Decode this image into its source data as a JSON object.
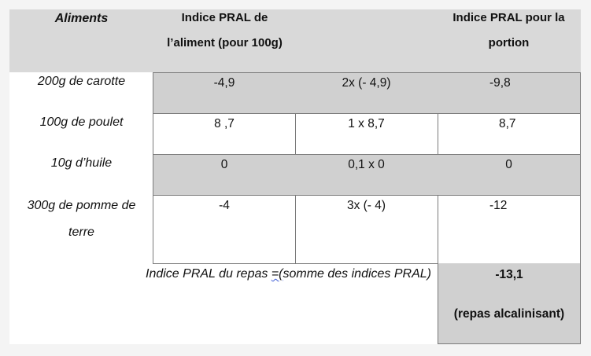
{
  "table": {
    "headers": {
      "aliments": "Aliments",
      "indice_aliment_line1": "Indice PRAL de",
      "indice_aliment_line2": "l’aliment (pour 100g)",
      "indice_portion_line1": "Indice PRAL pour la",
      "indice_portion_line2": "portion"
    },
    "rows": [
      {
        "food": "200g de carotte",
        "pral": "-4,9",
        "calc": "2x (- 4,9)",
        "portion": "-9,8"
      },
      {
        "food": "100g de poulet",
        "pral": "8 ,7",
        "calc": "1 x 8,7",
        "portion": "8,7"
      },
      {
        "food": "10g d’huile",
        "pral": "0",
        "calc": "0,1 x 0",
        "portion": "0"
      },
      {
        "food_line1": "300g de pomme de",
        "food_line2": "terre",
        "pral": "-4",
        "calc": "3x (- 4)",
        "portion": "-12"
      }
    ],
    "total": {
      "label_before": "Indice PRAL du repas ",
      "label_squiggle": "=(",
      "label_after": "somme des indices PRAL)",
      "value": "-13,1",
      "note": "(repas alcalinisant)"
    }
  }
}
